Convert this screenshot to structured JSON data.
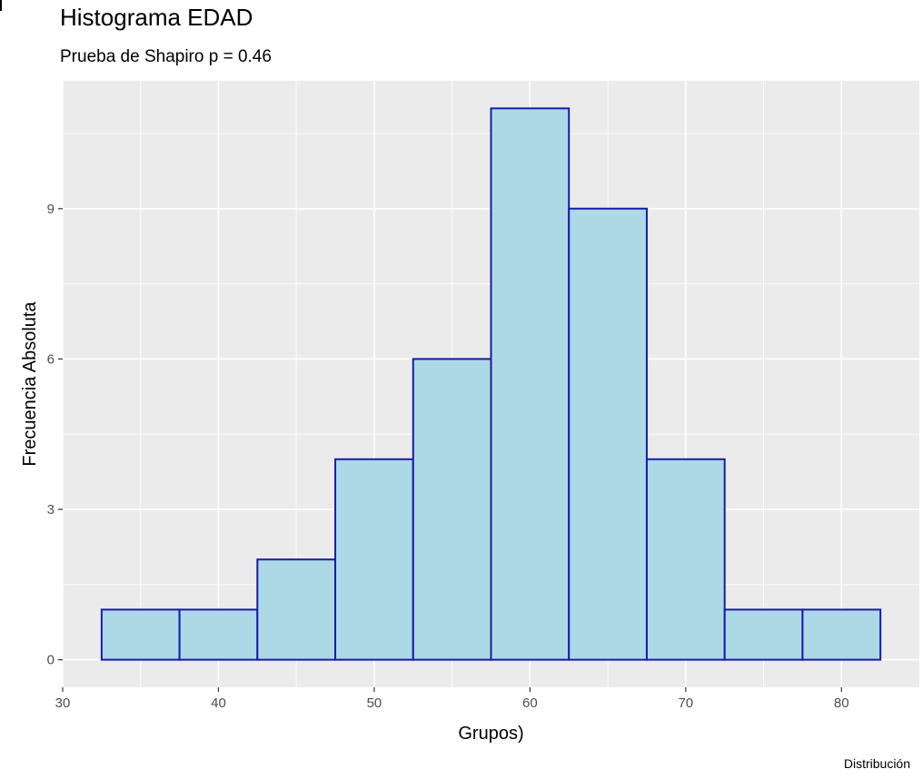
{
  "chart_data": {
    "type": "bar",
    "title": "Histograma EDAD",
    "subtitle": "Prueba de Shapiro p = 0.46",
    "xlabel": "Grupos)",
    "ylabel": "Frecuencia Absoluta",
    "caption": "Distribución",
    "bins": [
      {
        "from": 32.5,
        "to": 37.5,
        "count": 1
      },
      {
        "from": 37.5,
        "to": 42.5,
        "count": 1
      },
      {
        "from": 42.5,
        "to": 47.5,
        "count": 2
      },
      {
        "from": 47.5,
        "to": 52.5,
        "count": 4
      },
      {
        "from": 52.5,
        "to": 57.5,
        "count": 6
      },
      {
        "from": 57.5,
        "to": 62.5,
        "count": 11
      },
      {
        "from": 62.5,
        "to": 67.5,
        "count": 9
      },
      {
        "from": 67.5,
        "to": 72.5,
        "count": 4
      },
      {
        "from": 72.5,
        "to": 77.5,
        "count": 1
      },
      {
        "from": 77.5,
        "to": 82.5,
        "count": 1
      }
    ],
    "xlim": [
      30,
      85
    ],
    "ylim": [
      -0.55,
      11.55
    ],
    "xticks": [
      30,
      40,
      50,
      60,
      70,
      80
    ],
    "yticks": [
      0,
      3,
      6,
      9
    ],
    "grid": true,
    "colors": {
      "panel": "#ebebeb",
      "grid": "#ffffff",
      "fill": "#add8e6",
      "stroke": "#1a1aa8"
    }
  }
}
